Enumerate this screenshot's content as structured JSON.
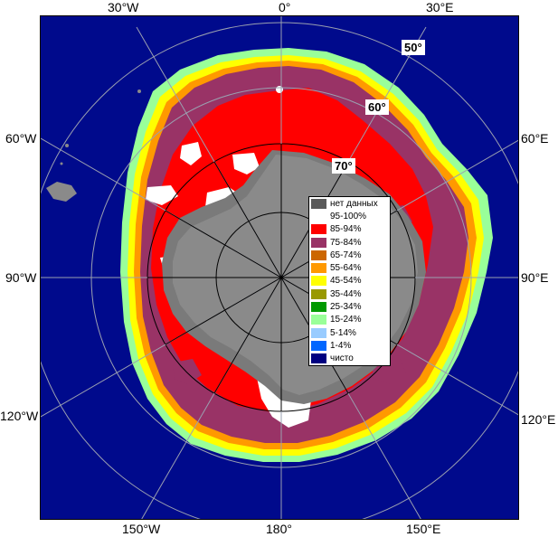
{
  "map": {
    "colors": {
      "ocean": "#000a8c",
      "land": "#8a8a8a",
      "ice_shelf": "#7a7a7a",
      "grid": "#9aa0b0",
      "dark_grid": "#000000"
    },
    "lon_labels": {
      "w30": "30°W",
      "zero": "0°",
      "e30": "30°E",
      "w60": "60°W",
      "e60": "60°E",
      "w90": "90°W",
      "e90": "90°E",
      "w120": "120°W",
      "e120": "120°E",
      "w150": "150°W",
      "l180": "180°",
      "e150": "150°E"
    },
    "lat_labels": {
      "l50": "50°",
      "l60": "60°",
      "l70": "70°"
    }
  },
  "legend": {
    "items": [
      {
        "label": "нет данных",
        "color": "#5a5a5a"
      },
      {
        "label": "95-100%",
        "color": "#ffffff"
      },
      {
        "label": "85-94%",
        "color": "#ff0000"
      },
      {
        "label": "75-84%",
        "color": "#993366"
      },
      {
        "label": "65-74%",
        "color": "#cc6600"
      },
      {
        "label": "55-64%",
        "color": "#ff9900"
      },
      {
        "label": "45-54%",
        "color": "#ffff00"
      },
      {
        "label": "35-44%",
        "color": "#999900"
      },
      {
        "label": "25-34%",
        "color": "#009900"
      },
      {
        "label": "15-24%",
        "color": "#99ff99"
      },
      {
        "label": "5-14%",
        "color": "#99ccff"
      },
      {
        "label": "1-4%",
        "color": "#0066ff"
      },
      {
        "label": "чисто",
        "color": "#000080"
      }
    ]
  }
}
